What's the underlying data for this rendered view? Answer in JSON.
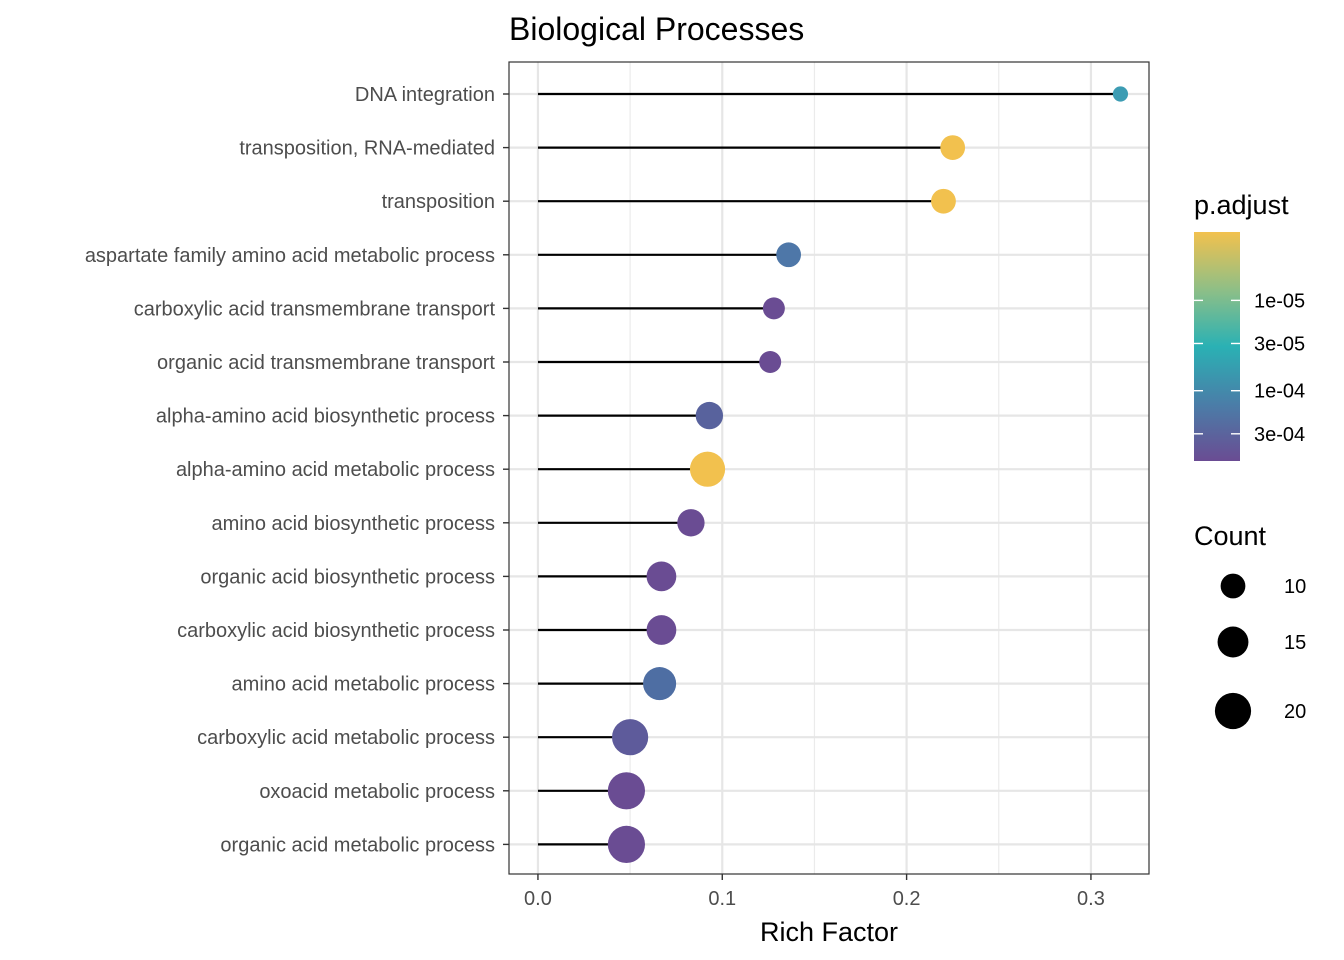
{
  "chart_data": {
    "type": "scatter",
    "variant": "lollipop",
    "title": "Biological Processes",
    "xlabel": "Rich Factor",
    "ylabel": "",
    "xlim": [
      -0.0157,
      0.3315
    ],
    "x_ticks": [
      0.0,
      0.1,
      0.2,
      0.3
    ],
    "x_tick_labels": [
      "0.0",
      "0.1",
      "0.2",
      "0.3"
    ],
    "grid": true,
    "legend_position": "right",
    "color_scale": {
      "title": "p.adjust",
      "scale": "log",
      "colors_top_to_bottom": [
        "#f2c14e",
        "#8fbf86",
        "#2ab1b4",
        "#4a7ea8",
        "#6a4c93"
      ],
      "ticks": [
        1e-05,
        3e-05,
        0.0001,
        0.0003
      ],
      "tick_labels": [
        "1e-05",
        "3e-05",
        "1e-04",
        "3e-04"
      ],
      "range": [
        1.75e-06,
        0.0006
      ]
    },
    "size_scale": {
      "title": "Count",
      "values": [
        10,
        15,
        20
      ],
      "labels": [
        "10",
        "15",
        "20"
      ]
    },
    "categories": [
      "DNA integration",
      "transposition, RNA-mediated",
      "transposition",
      "aspartate family amino acid metabolic process",
      "carboxylic acid transmembrane transport",
      "organic acid transmembrane transport",
      "alpha-amino acid biosynthetic process",
      "alpha-amino acid metabolic process",
      "amino acid biosynthetic process",
      "organic acid biosynthetic process",
      "carboxylic acid biosynthetic process",
      "amino acid metabolic process",
      "carboxylic acid metabolic process",
      "oxoacid metabolic process",
      "organic acid metabolic process"
    ],
    "rich_factor": [
      0.316,
      0.225,
      0.22,
      0.136,
      0.128,
      0.126,
      0.093,
      0.092,
      0.083,
      0.067,
      0.067,
      0.066,
      0.05,
      0.048,
      0.048
    ],
    "count": [
      4,
      10,
      10,
      10,
      8,
      8,
      12,
      19,
      12,
      14,
      14,
      17,
      20,
      21,
      21
    ],
    "colors": [
      "#3c9cb3",
      "#f2c14e",
      "#f2c14e",
      "#4e77a8",
      "#6a4c93",
      "#6a4c93",
      "#58629d",
      "#f2c14e",
      "#6a4c93",
      "#6a4c93",
      "#6a4c93",
      "#4e6ea3",
      "#5e5b9b",
      "#6a4c93",
      "#6a4c93"
    ]
  }
}
